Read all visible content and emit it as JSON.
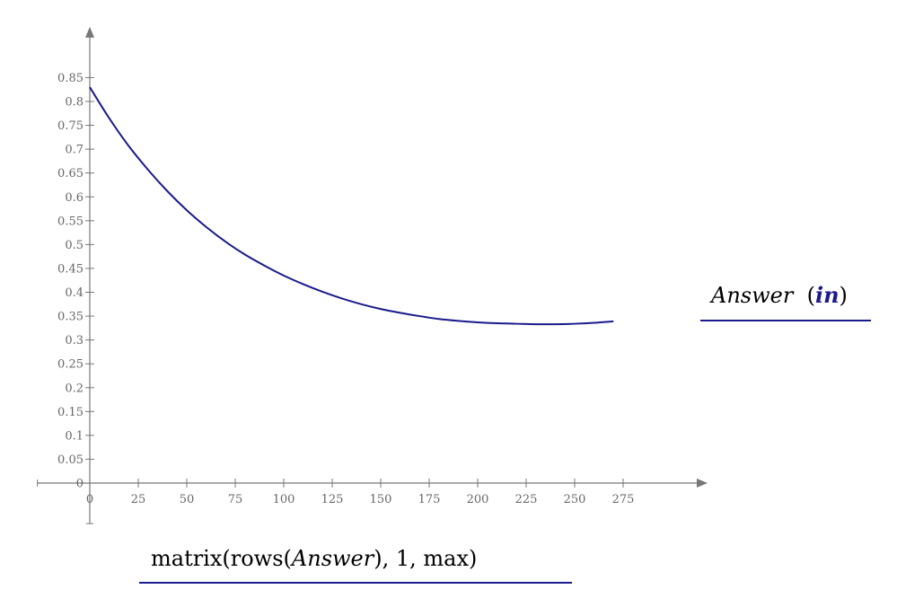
{
  "chart_data": {
    "type": "line",
    "title": "",
    "xlabel": {
      "prefix": "matrix(rows(",
      "var": "Answer",
      "suffix": "), 1, max)"
    },
    "ylabel": {
      "var": "Answer",
      "unit_open": "(",
      "unit": "in",
      "unit_close": ")"
    },
    "xlim": [
      -27,
      300
    ],
    "ylim": [
      -0.085,
      0.9
    ],
    "x_ticks": [
      0,
      25,
      50,
      75,
      100,
      125,
      150,
      175,
      200,
      225,
      250,
      275
    ],
    "x_tick_labels": [
      "0",
      "25",
      "50",
      "75",
      "100",
      "125",
      "150",
      "175",
      "200",
      "225",
      "250",
      "275"
    ],
    "y_ticks": [
      0,
      0.05,
      0.1,
      0.15,
      0.2,
      0.25,
      0.3,
      0.35,
      0.4,
      0.45,
      0.5,
      0.55,
      0.6,
      0.65,
      0.7,
      0.75,
      0.8,
      0.85
    ],
    "y_tick_labels": [
      "0",
      "0.05",
      "0.1",
      "0.15",
      "0.2",
      "0.25",
      "0.3",
      "0.35",
      "0.4",
      "0.45",
      "0.5",
      "0.55",
      "0.6",
      "0.65",
      "0.7",
      "0.75",
      "0.8",
      "0.85"
    ],
    "grid": false,
    "series": [
      {
        "color": "#1a1a8c",
        "x": [
          0,
          10,
          20,
          30,
          40,
          50,
          60,
          70,
          80,
          90,
          100,
          110,
          120,
          130,
          140,
          150,
          160,
          170,
          180,
          190,
          200,
          210,
          220,
          230,
          240,
          250,
          260,
          270
        ],
        "y": [
          0.83,
          0.765,
          0.707,
          0.657,
          0.612,
          0.572,
          0.537,
          0.506,
          0.479,
          0.456,
          0.435,
          0.417,
          0.401,
          0.387,
          0.375,
          0.365,
          0.357,
          0.35,
          0.344,
          0.34,
          0.337,
          0.335,
          0.334,
          0.333,
          0.333,
          0.334,
          0.336,
          0.339
        ]
      }
    ]
  }
}
